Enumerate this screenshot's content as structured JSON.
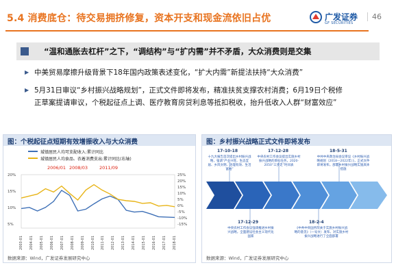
{
  "header": {
    "title": "5.4 消费底仓：待交易拥挤修复，资本开支和现金流依旧占优",
    "logo_cn": "广发证券",
    "logo_en": "GF SECURITIES",
    "page_number": "46"
  },
  "banner": {
    "text": "“温和通胀去杠杆”之下，“调结构”与“扩内需”并不矛盾，大众消费则是交集"
  },
  "bullets": [
    {
      "line1": "中美贸易摩擦升级背景下18年国内政策表述变化，“扩大内需”新提法扶持“大众消费”",
      "line2": ""
    },
    {
      "line1": "5月31日审议“乡村振兴战略规划”，正式文件即将发布，精准扶贫支撑农村消费；6月19日个税修",
      "line2": "正草案提请审议，个税起征点上调、医疗教育房贷利息等抵扣税收，抬升低收入人群“财富效应”"
    }
  ],
  "left_panel": {
    "title": "图：个税起征点短期有效增振收入与大众消费",
    "source": "数据来源：Wind，广发证券发展研究中心",
    "legend": [
      "城镇居民人均可支配收入:累计同比",
      "城镇居民人均食品、衣着消费支出:累计同比(右轴)"
    ],
    "annotations": [
      "2006/01",
      "2008/03",
      "2011/09"
    ],
    "left_ticks": [
      "20%",
      "15%",
      "10%",
      "5%"
    ],
    "right_ticks": [
      "25%",
      "20%",
      "15%",
      "10%",
      "5%",
      "0%",
      "-5%",
      "-10%",
      "-15%"
    ]
  },
  "right_panel": {
    "title": "图：乡村振兴战略正式文件即将发布",
    "source": "数据来源：Wind，广发证券发展研究中心",
    "top_events": [
      {
        "date": "17-10-18",
        "text": "十九大报告首次提出乡村振兴战略，强调“产业兴旺、生态宜居、乡风文明、治理有效、生活富裕”"
      },
      {
        "date": "17-12-28",
        "text": "中央农村工作会议提出实施乡村振兴战略的目标任务，2020-2050“三步走”时间表"
      },
      {
        "date": "18-5-31",
        "text": "中共中央政治局会议审议《乡村振兴战略规划（2018—2022年）》，正式文件即将发布，部署乡村振兴战略实施具体措施"
      }
    ],
    "bottom_events": [
      {
        "date": "17-12-29",
        "text": "中央农村工作会议强调推进乡村振兴战略，全面建设社会主义现代化国家"
      },
      {
        "date": "18-2-4",
        "text": "《中共中央国务院关于实施乡村振兴战略的意见》（一号文）发布，对实施乡村振兴战略进行了全面部署"
      }
    ]
  },
  "chart_data": {
    "type": "line",
    "x_ticks": [
      "2003-01",
      "2004-01",
      "2005-01",
      "2006-01",
      "2007-01",
      "2008-01",
      "2009-01",
      "2010-01",
      "2011-01",
      "2012-01",
      "2013-01",
      "2014-01",
      "2015-01",
      "2016-01",
      "2017-01",
      "2018-01"
    ],
    "ylim_left": [
      5,
      20
    ],
    "ylim_right": [
      -15,
      25
    ],
    "series": [
      {
        "name": "城镇居民人均可支配收入:累计同比",
        "axis": "left",
        "color": "#3d6fb6",
        "values": [
          10.5,
          10.8,
          9.8,
          10.8,
          12.5,
          15.6,
          14.2,
          9.8,
          10.3,
          11.8,
          13.2,
          14.0,
          13.0,
          10.0,
          9.5,
          9.7,
          9.0,
          8.2,
          8.1,
          8.0
        ]
      },
      {
        "name": "城镇居民人均食品、衣着消费支出:累计同比(右轴)",
        "axis": "right",
        "color": "#e8b417",
        "values": [
          7.5,
          9.0,
          10.5,
          14.5,
          12.0,
          16.5,
          11.0,
          6.0,
          13.5,
          17.5,
          13.5,
          10.5,
          6.5,
          5.5,
          5.0,
          3.5,
          4.0,
          1.5,
          2.0,
          1.0
        ]
      }
    ]
  }
}
